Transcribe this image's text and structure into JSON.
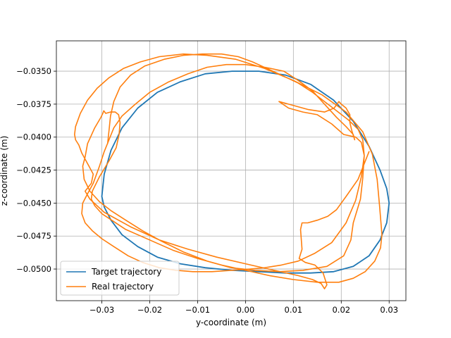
{
  "chart_data": {
    "type": "line",
    "title": "",
    "xlabel": "y-coordinate (m)",
    "ylabel": "z-coordinate (m)",
    "xlim": [
      -0.0395,
      0.0335
    ],
    "ylim": [
      -0.0524,
      -0.0327
    ],
    "grid": true,
    "legend_position": "lower-left",
    "x_ticks": [
      -0.03,
      -0.02,
      -0.01,
      0.0,
      0.01,
      0.02,
      0.03
    ],
    "x_tick_labels": [
      "−0.03",
      "−0.02",
      "−0.01",
      "0.00",
      "0.01",
      "0.02",
      "0.03"
    ],
    "y_ticks": [
      -0.035,
      -0.0375,
      -0.04,
      -0.0425,
      -0.045,
      -0.0475,
      -0.05
    ],
    "y_tick_labels": [
      "−0.0350",
      "−0.0375",
      "−0.0400",
      "−0.0425",
      "−0.0450",
      "−0.0475",
      "−0.0500"
    ],
    "series": [
      {
        "name": "Target trajectory",
        "color": "#1f77b4",
        "x": [
          0.03,
          0.0295,
          0.0281,
          0.0258,
          0.0225,
          0.0184,
          0.0136,
          0.0084,
          0.0028,
          -0.0028,
          -0.0084,
          -0.0136,
          -0.0184,
          -0.0225,
          -0.0258,
          -0.0281,
          -0.0295,
          -0.03,
          -0.0295,
          -0.0281,
          -0.0258,
          -0.0225,
          -0.0184,
          -0.0136,
          -0.0084,
          -0.0028,
          0.0028,
          0.0084,
          0.0136,
          0.0184,
          0.0225,
          0.0258,
          0.0281,
          0.0295,
          0.03
        ],
        "y": [
          -0.045,
          -0.0465,
          -0.0478,
          -0.049,
          -0.0498,
          -0.0502,
          -0.0503,
          -0.0503,
          -0.0502,
          -0.0501,
          -0.0499,
          -0.0496,
          -0.0491,
          -0.0483,
          -0.0474,
          -0.0463,
          -0.0453,
          -0.0445,
          -0.0428,
          -0.041,
          -0.0393,
          -0.0378,
          -0.0366,
          -0.0358,
          -0.0352,
          -0.035,
          -0.035,
          -0.0353,
          -0.036,
          -0.0372,
          -0.0388,
          -0.0407,
          -0.0425,
          -0.0439,
          -0.045
        ]
      },
      {
        "name": "Real trajectory",
        "color": "#ff7f0e",
        "x": [
          0.0258,
          0.0235,
          0.021,
          0.019,
          0.0172,
          0.015,
          0.013,
          0.0118,
          0.0115,
          0.0118,
          0.0112,
          0.0125,
          0.0145,
          0.0162,
          0.017,
          0.0165,
          0.0158,
          0.014,
          0.011,
          0.006,
          0.0,
          -0.006,
          -0.012,
          -0.018,
          -0.024,
          -0.0295,
          -0.0325,
          -0.0335,
          -0.0322,
          -0.0318,
          -0.033,
          -0.0342,
          -0.0348,
          -0.0355,
          -0.0357,
          -0.0355,
          -0.0345,
          -0.033,
          -0.031,
          -0.0285,
          -0.0255,
          -0.022,
          -0.018,
          -0.013,
          -0.008,
          -0.002,
          0.004,
          0.01,
          0.016,
          0.021,
          0.0245,
          0.0265,
          0.0275,
          0.028,
          0.0285,
          0.0282,
          0.027,
          0.025,
          0.0225,
          0.0195,
          0.015,
          0.01,
          0.005,
          0.0,
          -0.005,
          -0.01,
          -0.015,
          -0.02,
          -0.025,
          -0.03,
          -0.0315,
          -0.0322,
          -0.032,
          -0.0305,
          -0.0285,
          -0.027,
          -0.0264,
          -0.0262,
          -0.0265,
          -0.0272,
          -0.0282,
          -0.0292,
          -0.0296,
          -0.0298,
          -0.0302,
          -0.0315,
          -0.033,
          -0.0335,
          -0.034,
          -0.0337,
          -0.0325,
          -0.0305,
          -0.028,
          -0.025,
          -0.0215,
          -0.0175,
          -0.013,
          -0.008,
          -0.003,
          0.002,
          0.007,
          0.012,
          0.017,
          0.0205,
          0.022,
          0.0225,
          0.024,
          0.0245,
          0.0248,
          0.0242,
          0.023,
          0.0205,
          0.018,
          0.015,
          0.012,
          0.009,
          0.007,
          0.009,
          0.013,
          0.0165,
          0.0185,
          0.0195,
          0.02,
          0.021,
          0.0218,
          0.0218,
          0.0222,
          0.0228,
          0.0225,
          0.021,
          0.019,
          0.0165,
          0.014,
          0.011,
          0.008,
          0.004,
          0.0,
          -0.004,
          -0.008,
          -0.012,
          -0.016,
          -0.02,
          -0.023,
          -0.0258,
          -0.0275,
          -0.0285,
          -0.0295,
          -0.0305,
          -0.0318,
          -0.033,
          -0.034,
          -0.0342,
          -0.0335,
          -0.032,
          -0.03,
          -0.0275,
          -0.0245,
          -0.0215,
          -0.018,
          -0.0145,
          -0.011,
          -0.007,
          -0.003,
          0.001,
          0.004,
          0.0075,
          0.011,
          0.0145,
          0.018,
          0.021,
          0.023,
          0.0242,
          0.0248,
          0.0245,
          0.0235,
          0.0215,
          0.019,
          0.0165,
          0.014,
          0.011,
          0.0075,
          0.0045,
          0.0015,
          -0.0015,
          -0.005,
          -0.009,
          -0.013,
          -0.017,
          -0.021,
          -0.024,
          -0.0262,
          -0.0275,
          -0.0282,
          -0.0285,
          -0.0288
        ],
        "y": [
          -0.0411,
          -0.0432,
          -0.0445,
          -0.0455,
          -0.046,
          -0.0463,
          -0.0465,
          -0.0465,
          -0.047,
          -0.0485,
          -0.0492,
          -0.0495,
          -0.0497,
          -0.0503,
          -0.0512,
          -0.0515,
          -0.0511,
          -0.0508,
          -0.0505,
          -0.0501,
          -0.0496,
          -0.0491,
          -0.0485,
          -0.0478,
          -0.0468,
          -0.0457,
          -0.0447,
          -0.0441,
          -0.0435,
          -0.0428,
          -0.042,
          -0.0412,
          -0.0406,
          -0.0402,
          -0.0398,
          -0.0392,
          -0.0382,
          -0.0372,
          -0.0363,
          -0.0355,
          -0.0348,
          -0.0343,
          -0.0339,
          -0.0337,
          -0.0338,
          -0.0341,
          -0.0348,
          -0.0357,
          -0.0368,
          -0.0381,
          -0.0396,
          -0.0413,
          -0.0432,
          -0.0452,
          -0.0474,
          -0.0484,
          -0.0494,
          -0.0502,
          -0.0507,
          -0.051,
          -0.051,
          -0.0508,
          -0.0505,
          -0.0501,
          -0.0497,
          -0.0492,
          -0.0486,
          -0.0478,
          -0.047,
          -0.0458,
          -0.0452,
          -0.0447,
          -0.0441,
          -0.043,
          -0.0418,
          -0.0408,
          -0.0398,
          -0.0389,
          -0.0383,
          -0.0381,
          -0.0381,
          -0.0382,
          -0.038,
          -0.0382,
          -0.0385,
          -0.0393,
          -0.0405,
          -0.0415,
          -0.0422,
          -0.0432,
          -0.0441,
          -0.0449,
          -0.0456,
          -0.0463,
          -0.0471,
          -0.0479,
          -0.0487,
          -0.0494,
          -0.0499,
          -0.0501,
          -0.0502,
          -0.0501,
          -0.0498,
          -0.049,
          -0.0478,
          -0.0465,
          -0.0447,
          -0.0431,
          -0.0414,
          -0.0404,
          -0.04,
          -0.0398,
          -0.039,
          -0.0383,
          -0.0381,
          -0.0378,
          -0.0373,
          -0.0375,
          -0.0379,
          -0.0381,
          -0.0378,
          -0.0373,
          -0.0375,
          -0.0378,
          -0.0383,
          -0.0389,
          -0.0395,
          -0.0402,
          -0.0398,
          -0.0392,
          -0.0385,
          -0.0375,
          -0.0365,
          -0.0357,
          -0.035,
          -0.0347,
          -0.0345,
          -0.0345,
          -0.0347,
          -0.0352,
          -0.0358,
          -0.0366,
          -0.0375,
          -0.0384,
          -0.0393,
          -0.0402,
          -0.0411,
          -0.0422,
          -0.0435,
          -0.0443,
          -0.045,
          -0.0458,
          -0.0465,
          -0.0471,
          -0.0477,
          -0.0483,
          -0.049,
          -0.0495,
          -0.0499,
          -0.0501,
          -0.0502,
          -0.0502,
          -0.0501,
          -0.05,
          -0.0499,
          -0.0497,
          -0.0494,
          -0.0488,
          -0.048,
          -0.0465,
          -0.0448,
          -0.043,
          -0.0414,
          -0.0402,
          -0.0394,
          -0.0387,
          -0.038,
          -0.0373,
          -0.0366,
          -0.0359,
          -0.0353,
          -0.0348,
          -0.0343,
          -0.0339,
          -0.0337,
          -0.0337,
          -0.0338,
          -0.0341,
          -0.0346,
          -0.0353,
          -0.0362,
          -0.0373,
          -0.0384,
          -0.0395,
          -0.0405
        ]
      }
    ]
  }
}
